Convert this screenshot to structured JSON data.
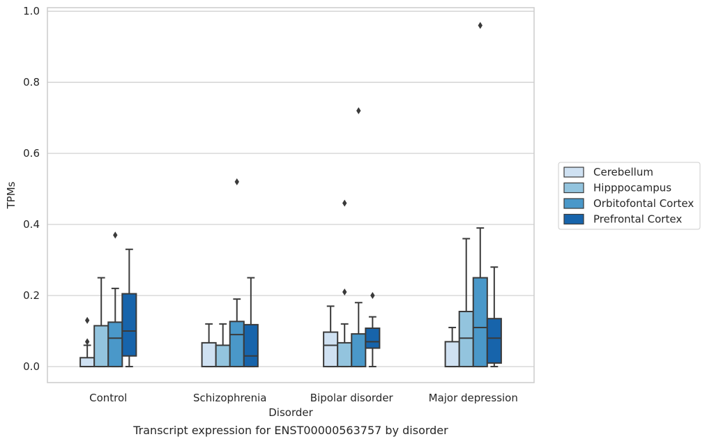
{
  "chart_data": {
    "type": "box",
    "title": "Transcript expression for ENST00000563757 by disorder",
    "xlabel": "Disorder",
    "ylabel": "TPMs",
    "ylim": [
      -0.045,
      1.01
    ],
    "yticks": [
      0.0,
      0.2,
      0.4,
      0.6,
      0.8,
      1.0
    ],
    "ytick_labels": [
      "0.0",
      "0.2",
      "0.4",
      "0.6",
      "0.8",
      "1.0"
    ],
    "grid": "horizontal",
    "legend_position": "right",
    "categories": [
      "Control",
      "Schizophrenia",
      "Bipolar disorder",
      "Major depression"
    ],
    "series": [
      {
        "name": "Cerebellum",
        "color": "#cfe1f2",
        "boxes": [
          {
            "whisker_low": 0.0,
            "q1": 0.0,
            "median": 0.0,
            "q3": 0.025,
            "whisker_high": 0.06,
            "outliers": [
              0.07,
              0.13
            ]
          },
          {
            "whisker_low": 0.0,
            "q1": 0.0,
            "median": 0.0,
            "q3": 0.067,
            "whisker_high": 0.12,
            "outliers": []
          },
          {
            "whisker_low": 0.0,
            "q1": 0.0,
            "median": 0.06,
            "q3": 0.097,
            "whisker_high": 0.17,
            "outliers": []
          },
          {
            "whisker_low": 0.0,
            "q1": 0.0,
            "median": 0.0,
            "q3": 0.07,
            "whisker_high": 0.11,
            "outliers": []
          }
        ]
      },
      {
        "name": "Hipppocampus",
        "color": "#93c4de",
        "boxes": [
          {
            "whisker_low": 0.0,
            "q1": 0.0,
            "median": 0.0,
            "q3": 0.115,
            "whisker_high": 0.25,
            "outliers": []
          },
          {
            "whisker_low": 0.0,
            "q1": 0.0,
            "median": 0.0,
            "q3": 0.06,
            "whisker_high": 0.12,
            "outliers": []
          },
          {
            "whisker_low": 0.0,
            "q1": 0.0,
            "median": 0.0,
            "q3": 0.067,
            "whisker_high": 0.12,
            "outliers": [
              0.21,
              0.46
            ]
          },
          {
            "whisker_low": 0.0,
            "q1": 0.0,
            "median": 0.08,
            "q3": 0.155,
            "whisker_high": 0.36,
            "outliers": []
          }
        ]
      },
      {
        "name": "Orbitofontal Cortex",
        "color": "#4a98c9",
        "boxes": [
          {
            "whisker_low": 0.0,
            "q1": 0.0,
            "median": 0.08,
            "q3": 0.125,
            "whisker_high": 0.22,
            "outliers": [
              0.37
            ]
          },
          {
            "whisker_low": 0.0,
            "q1": 0.0,
            "median": 0.09,
            "q3": 0.127,
            "whisker_high": 0.19,
            "outliers": [
              0.52
            ]
          },
          {
            "whisker_low": 0.0,
            "q1": 0.0,
            "median": 0.0,
            "q3": 0.092,
            "whisker_high": 0.18,
            "outliers": [
              0.72
            ]
          },
          {
            "whisker_low": 0.0,
            "q1": 0.0,
            "median": 0.11,
            "q3": 0.25,
            "whisker_high": 0.39,
            "outliers": [
              0.96
            ]
          }
        ]
      },
      {
        "name": "Prefrontal Cortex",
        "color": "#1764ab",
        "boxes": [
          {
            "whisker_low": 0.0,
            "q1": 0.03,
            "median": 0.1,
            "q3": 0.205,
            "whisker_high": 0.33,
            "outliers": []
          },
          {
            "whisker_low": 0.0,
            "q1": 0.0,
            "median": 0.03,
            "q3": 0.118,
            "whisker_high": 0.25,
            "outliers": []
          },
          {
            "whisker_low": 0.0,
            "q1": 0.052,
            "median": 0.07,
            "q3": 0.108,
            "whisker_high": 0.14,
            "outliers": [
              0.2
            ]
          },
          {
            "whisker_low": 0.0,
            "q1": 0.01,
            "median": 0.08,
            "q3": 0.135,
            "whisker_high": 0.28,
            "outliers": []
          }
        ]
      }
    ]
  }
}
